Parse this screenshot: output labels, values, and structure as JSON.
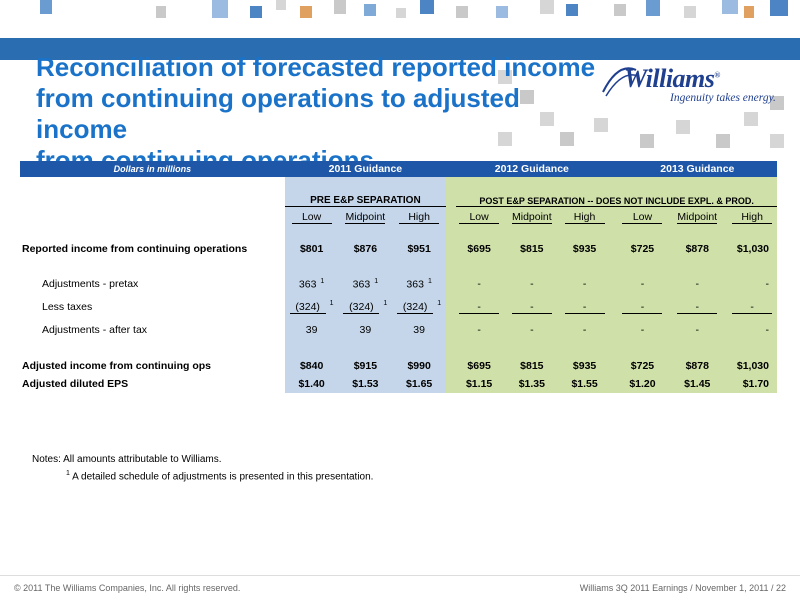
{
  "title_lines": [
    "Reconciliation of forecasted reported income",
    "from continuing operations to adjusted income",
    "from continuing operations"
  ],
  "logo": {
    "word": "Williams",
    "registered": "®",
    "tagline": "Ingenuity takes energy."
  },
  "table": {
    "dim_label": "Dollars in millions",
    "year_headers": [
      "2011 Guidance",
      "2012 Guidance",
      "2013 Guidance"
    ],
    "pre_label": "PRE E&P SEPARATION",
    "post_label": "POST E&P SEPARATION -- DOES NOT INCLUDE EXPL. & PROD.",
    "cols": [
      "Low",
      "Midpoint",
      "High",
      "Low",
      "Midpoint",
      "High",
      "Low",
      "Midpoint",
      "High"
    ],
    "rows": {
      "reported": {
        "label": "Reported income from continuing operations",
        "values": [
          "$801",
          "$876",
          "$951",
          "$695",
          "$815",
          "$935",
          "$725",
          "$878",
          "$1,030"
        ]
      },
      "pretax": {
        "label": "Adjustments - pretax",
        "values": [
          "363",
          "363",
          "363",
          "-",
          "-",
          "-",
          "-",
          "-",
          "-"
        ]
      },
      "taxes": {
        "label": "Less taxes",
        "values": [
          "(324)",
          "(324)",
          "(324)",
          "-",
          "-",
          "-",
          "-",
          "-",
          "-"
        ]
      },
      "aftertax": {
        "label": "Adjustments - after tax",
        "values": [
          "39",
          "39",
          "39",
          "-",
          "-",
          "-",
          "-",
          "-",
          "-"
        ]
      },
      "adjusted": {
        "label": "Adjusted income from continuing ops",
        "values": [
          "$840",
          "$915",
          "$990",
          "$695",
          "$815",
          "$935",
          "$725",
          "$878",
          "$1,030"
        ]
      },
      "eps": {
        "label": "Adjusted diluted EPS",
        "values": [
          "$1.40",
          "$1.53",
          "$1.65",
          "$1.15",
          "$1.35",
          "$1.55",
          "$1.20",
          "$1.45",
          "$1.70"
        ]
      }
    },
    "footnote_mark": "1"
  },
  "notes": {
    "line1": "Notes:  All amounts attributable to Williams.",
    "mark": "1",
    "line2": "A detailed schedule of adjustments is presented in this presentation."
  },
  "footer": {
    "left": "© 2011 The Williams Companies, Inc. All rights reserved.",
    "right": "Williams 3Q 2011 Earnings / November 1, 2011 /   22"
  },
  "colors": {
    "title": "#1a73c8",
    "header": "#1f57a8",
    "pre_bg": "#c5d6ea",
    "post_bg": "#cfe0a9"
  }
}
